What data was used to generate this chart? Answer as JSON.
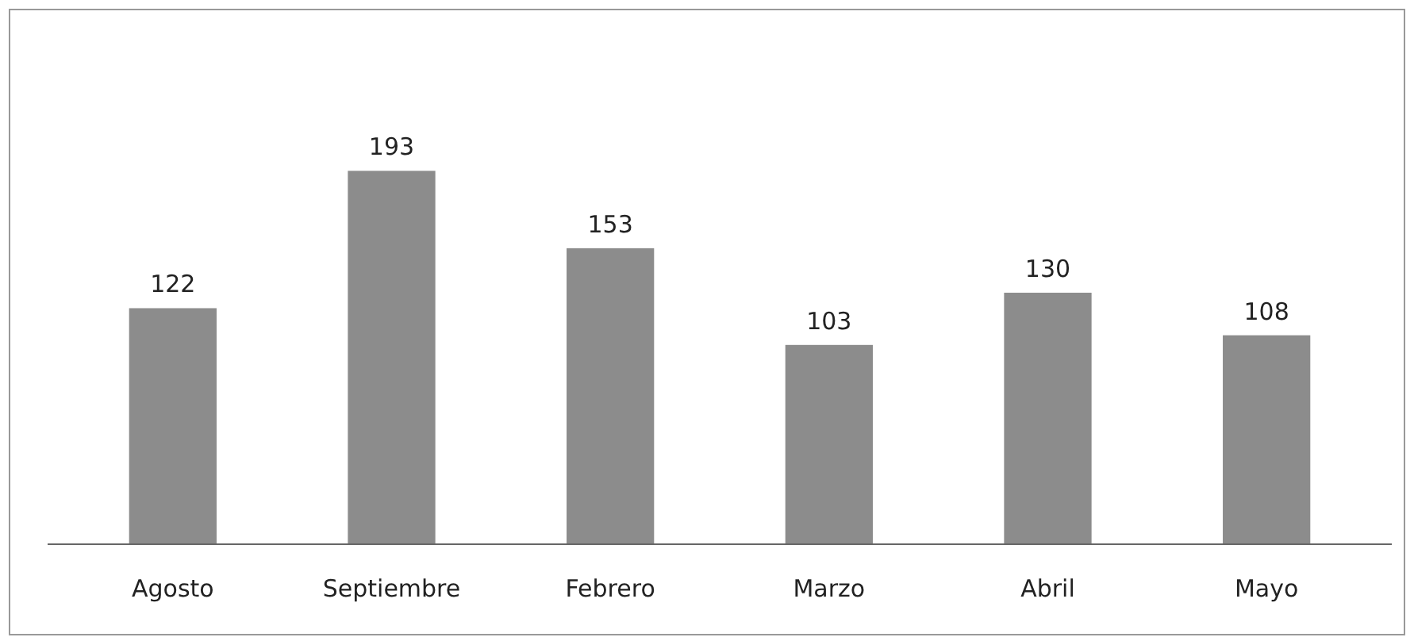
{
  "chart_data": {
    "type": "bar",
    "categories": [
      "Agosto",
      "Septiembre",
      "Febrero",
      "Marzo",
      "Abril",
      "Mayo"
    ],
    "values": [
      122,
      193,
      153,
      103,
      130,
      108
    ],
    "color": "#8c8c8c",
    "data_labels": true
  }
}
